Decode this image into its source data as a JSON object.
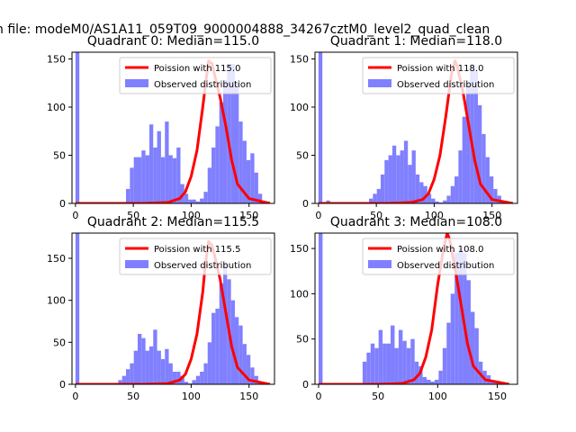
{
  "figure_title": "n file: modeM0/AS1A11_059T09_9000004888_34267cztM0_level2_quad_clean",
  "colors": {
    "histogram": "#8080ff",
    "poisson": "#ff0000",
    "axes": "#000000"
  },
  "chart_data": [
    {
      "type": "bar",
      "title": "Quadrant 0: Median=115.0",
      "median": 115.0,
      "legend": {
        "line": "Poission with 115.0",
        "bars": "Observed distribution",
        "placement": "top-right"
      },
      "xlim": [
        -3,
        172
      ],
      "ylim": [
        0,
        157
      ],
      "xticks": [
        0,
        50,
        100,
        150
      ],
      "yticks": [
        0,
        50,
        100,
        150
      ],
      "bin_width": 3.36,
      "x_start": 0,
      "values": [
        157,
        0,
        0,
        0,
        0,
        0,
        0,
        0,
        0,
        0,
        0,
        0,
        0,
        15,
        37,
        48,
        48,
        55,
        50,
        82,
        58,
        75,
        48,
        85,
        50,
        47,
        58,
        20,
        10,
        4,
        4,
        2,
        5,
        12,
        37,
        58,
        80,
        105,
        128,
        145,
        145,
        125,
        85,
        65,
        45,
        52,
        32,
        10,
        2,
        2
      ],
      "line_x": [
        0,
        60,
        80,
        90,
        95,
        100,
        105,
        110,
        112,
        115,
        118,
        120,
        125,
        130,
        135,
        140,
        150,
        168
      ],
      "line_y": [
        0,
        0,
        1,
        5,
        12,
        28,
        55,
        100,
        120,
        148,
        145,
        135,
        110,
        80,
        45,
        20,
        5,
        0
      ]
    },
    {
      "type": "bar",
      "title": "Quadrant 1: Median=118.0",
      "median": 118.0,
      "legend": {
        "line": "Poission with 118.0",
        "bars": "Observed distribution",
        "placement": "top-right"
      },
      "xlim": [
        -3,
        172
      ],
      "ylim": [
        0,
        157
      ],
      "xticks": [
        0,
        50,
        100,
        150
      ],
      "yticks": [
        0,
        50,
        100,
        150
      ],
      "bin_width": 3.36,
      "x_start": 0,
      "values": [
        157,
        0,
        3,
        0,
        0,
        0,
        0,
        0,
        0,
        0,
        0,
        0,
        0,
        5,
        10,
        15,
        30,
        45,
        50,
        60,
        50,
        55,
        65,
        40,
        55,
        30,
        22,
        18,
        10,
        5,
        2,
        1,
        3,
        8,
        18,
        28,
        55,
        90,
        125,
        145,
        138,
        102,
        72,
        48,
        28,
        15,
        8,
        2,
        0,
        0
      ],
      "line_x": [
        0,
        60,
        80,
        90,
        95,
        100,
        105,
        110,
        115,
        118,
        120,
        125,
        130,
        135,
        140,
        150,
        168
      ],
      "line_y": [
        0,
        0,
        1,
        4,
        10,
        25,
        50,
        90,
        135,
        148,
        142,
        115,
        80,
        45,
        20,
        4,
        0
      ]
    },
    {
      "type": "bar",
      "title": "Quadrant 2: Median=115.5",
      "median": 115.5,
      "legend": {
        "line": "Poission with 115.5",
        "bars": "Observed distribution",
        "placement": "top-right"
      },
      "xlim": [
        -3,
        172
      ],
      "ylim": [
        0,
        180
      ],
      "xticks": [
        0,
        50,
        100,
        150
      ],
      "yticks": [
        0,
        50,
        100,
        150
      ],
      "bin_width": 3.36,
      "x_start": 0,
      "values": [
        180,
        0,
        0,
        0,
        0,
        0,
        0,
        0,
        0,
        0,
        0,
        5,
        10,
        18,
        25,
        40,
        60,
        55,
        40,
        45,
        65,
        40,
        30,
        42,
        25,
        15,
        15,
        10,
        3,
        1,
        5,
        10,
        15,
        25,
        50,
        85,
        90,
        120,
        145,
        125,
        100,
        80,
        70,
        48,
        35,
        20,
        10,
        3,
        0
      ],
      "line_x": [
        0,
        60,
        80,
        90,
        95,
        100,
        105,
        110,
        112,
        115,
        118,
        120,
        125,
        130,
        135,
        140,
        150,
        168
      ],
      "line_y": [
        0,
        0,
        1,
        5,
        12,
        30,
        60,
        110,
        140,
        170,
        165,
        155,
        125,
        85,
        45,
        20,
        5,
        0
      ]
    },
    {
      "type": "bar",
      "title": "Quadrant 3: Median=108.0",
      "median": 108.0,
      "legend": {
        "line": "Poission with 108.0",
        "bars": "Observed distribution",
        "placement": "top-right"
      },
      "xlim": [
        -3,
        167
      ],
      "ylim": [
        0,
        167
      ],
      "xticks": [
        0,
        50,
        100,
        150
      ],
      "yticks": [
        0,
        50,
        100,
        150
      ],
      "bin_width": 3.36,
      "x_start": 0,
      "values": [
        167,
        0,
        0,
        0,
        0,
        0,
        0,
        0,
        0,
        0,
        0,
        25,
        35,
        45,
        40,
        60,
        45,
        45,
        65,
        40,
        60,
        48,
        40,
        50,
        25,
        20,
        8,
        5,
        3,
        5,
        15,
        40,
        68,
        100,
        145,
        150,
        145,
        115,
        80,
        62,
        25,
        15,
        10,
        3,
        2,
        0,
        0
      ],
      "line_x": [
        0,
        50,
        70,
        80,
        85,
        90,
        95,
        100,
        105,
        108,
        110,
        115,
        120,
        125,
        130,
        140,
        160
      ],
      "line_y": [
        0,
        0,
        1,
        5,
        12,
        30,
        60,
        110,
        150,
        167,
        160,
        125,
        85,
        45,
        20,
        5,
        0
      ]
    }
  ]
}
